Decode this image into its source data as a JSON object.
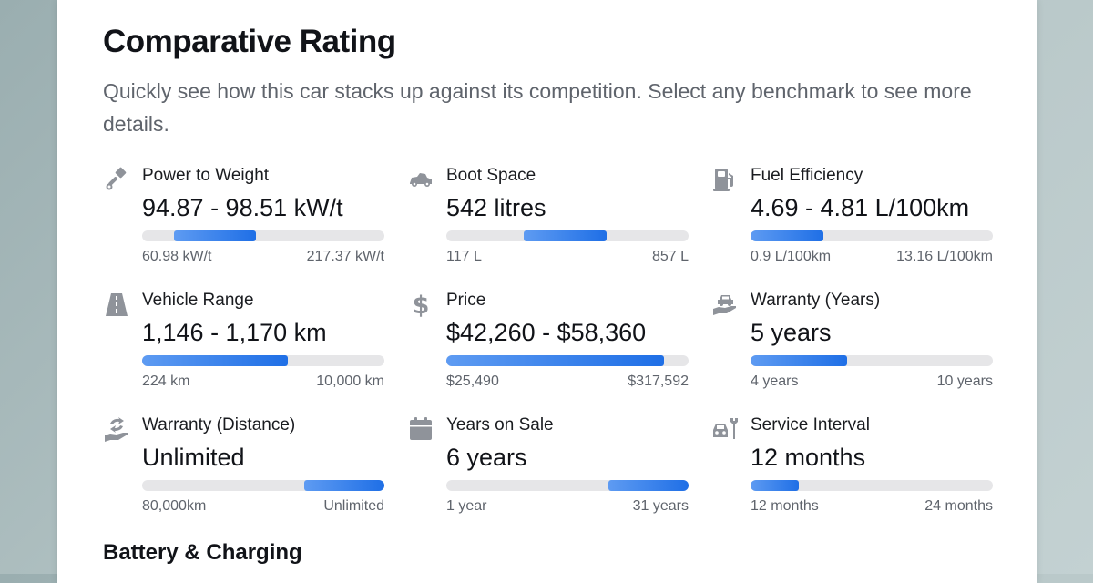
{
  "header": {
    "title": "Comparative Rating",
    "subtitle": "Quickly see how this car stacks up against its competition. Select any benchmark to see more details."
  },
  "accent_color": "#1f6fe6",
  "metrics": [
    {
      "icon": "piston-icon",
      "label": "Power to Weight",
      "value": "94.87 - 98.51 kW/t",
      "min": "60.98 kW/t",
      "max": "217.37 kW/t",
      "range_fraction": [
        0.13,
        0.47
      ]
    },
    {
      "icon": "car-boot-icon",
      "label": "Boot Space",
      "value": "542 litres",
      "min": "117 L",
      "max": "857 L",
      "range_fraction": [
        0.32,
        0.66
      ]
    },
    {
      "icon": "fuel-pump-icon",
      "label": "Fuel Efficiency",
      "value": "4.69 - 4.81 L/100km",
      "min": "0.9 L/100km",
      "max": "13.16 L/100km",
      "range_fraction": [
        0.0,
        0.3
      ]
    },
    {
      "icon": "road-icon",
      "label": "Vehicle Range",
      "value": "1,146 - 1,170 km",
      "min": "224 km",
      "max": "10,000 km",
      "range_fraction": [
        0.0,
        0.6
      ]
    },
    {
      "icon": "dollar-icon",
      "label": "Price",
      "value": "$42,260 - $58,360",
      "min": "$25,490",
      "max": "$317,592",
      "range_fraction": [
        0.0,
        0.9
      ]
    },
    {
      "icon": "car-hand-icon",
      "label": "Warranty (Years)",
      "value": "5 years",
      "min": "4 years",
      "max": "10 years",
      "range_fraction": [
        0.0,
        0.4
      ]
    },
    {
      "icon": "hand-arrows-icon",
      "label": "Warranty (Distance)",
      "value": "Unlimited",
      "min": "80,000km",
      "max": "Unlimited",
      "range_fraction": [
        0.67,
        1.0
      ]
    },
    {
      "icon": "calendar-icon",
      "label": "Years on Sale",
      "value": "6 years",
      "min": "1 year",
      "max": "31 years",
      "range_fraction": [
        0.67,
        1.0
      ]
    },
    {
      "icon": "car-wrench-icon",
      "label": "Service Interval",
      "value": "12 months",
      "min": "12 months",
      "max": "24 months",
      "range_fraction": [
        0.0,
        0.2
      ]
    }
  ],
  "section": {
    "title": "Battery & Charging"
  }
}
